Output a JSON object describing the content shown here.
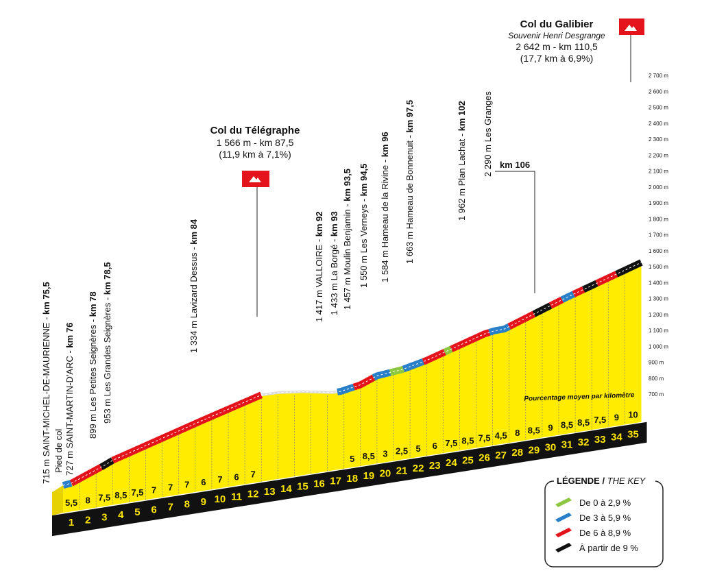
{
  "summits": [
    {
      "name": "Col du Télégraphe",
      "details": [
        "1 566 m - km 87,5",
        "(11,9 km à 7,1%)"
      ]
    },
    {
      "name": "Col du Galibier",
      "subtitle": "Souvenir Henri Desgrange",
      "details": [
        "2 642 m - km 110,5",
        "(17,7 km à 6,9%)"
      ]
    }
  ],
  "waypoints": [
    {
      "text": "715 m SAINT-MICHEL-DE-MAURIENNE - ",
      "km": "km 75,5",
      "note": "Pied de col"
    },
    {
      "text": "727 m SAINT-MARTIN-D'ARC - ",
      "km": "km 76"
    },
    {
      "text": "899 m Les Petites Seignères - ",
      "km": "km 78"
    },
    {
      "text": "953 m Les Grandes Seignères - ",
      "km": "km 78,5"
    },
    {
      "text": "1 334 m Lavizard Dessus - ",
      "km": "km 84"
    },
    {
      "text": "1 417 m VALLOIRE - ",
      "km": "km 92"
    },
    {
      "text": "1 433 m La Borgé - ",
      "km": "km 93"
    },
    {
      "text": "1 457 m Moulin Benjamin - ",
      "km": "km 93,5"
    },
    {
      "text": "1 550 m Les Verneys - ",
      "km": "km 94,5"
    },
    {
      "text": "1 584 m Hameau de la Rivine - ",
      "km": "km 96"
    },
    {
      "text": "1 663 m Hameau de Bonnenuit - ",
      "km": "km 97,5"
    },
    {
      "text": "1 962 m Plan Lachat - ",
      "km": "km 102"
    },
    {
      "text": "2 290 m Les Granges",
      "km": "km 106"
    }
  ],
  "axis_labels": [
    "700 m",
    "800 m",
    "900 m",
    "1 000 m",
    "1 100 m",
    "1 200 m",
    "1 300 m",
    "1 400 m",
    "1 500 m",
    "1 600 m",
    "1 700 m",
    "1 800 m",
    "1 900 m",
    "2 000 m",
    "2 100 m",
    "2 200 m",
    "2 300 m",
    "2 400 m",
    "2 500 m",
    "2 600 m",
    "2 700 m"
  ],
  "gradients": [
    "5,5",
    "8",
    "7,5",
    "8,5",
    "7,5",
    "7",
    "7",
    "7",
    "6",
    "7",
    "6",
    "7",
    null,
    null,
    null,
    null,
    null,
    "5",
    "8,5",
    "3",
    "2,5",
    "5",
    "6",
    "7,5",
    "8,5",
    "7,5",
    "4,5",
    "8",
    "8,5",
    "9",
    "8,5",
    "8,5",
    "7,5",
    "9",
    "10"
  ],
  "km_labels": [
    1,
    2,
    3,
    4,
    5,
    6,
    7,
    8,
    9,
    10,
    11,
    12,
    13,
    14,
    15,
    16,
    17,
    18,
    19,
    20,
    21,
    22,
    23,
    24,
    25,
    26,
    27,
    28,
    29,
    30,
    31,
    32,
    33,
    34,
    35
  ],
  "note": "Pourcentage moyen par kilomètre",
  "legend": {
    "title": "LÉGENDE /",
    "title_en": "THE KEY",
    "items": [
      "De 0 à 2,9 %",
      "De 3 à 5,9 %",
      "De 6 à 8,9 %",
      "À partir de 9 %"
    ]
  }
}
